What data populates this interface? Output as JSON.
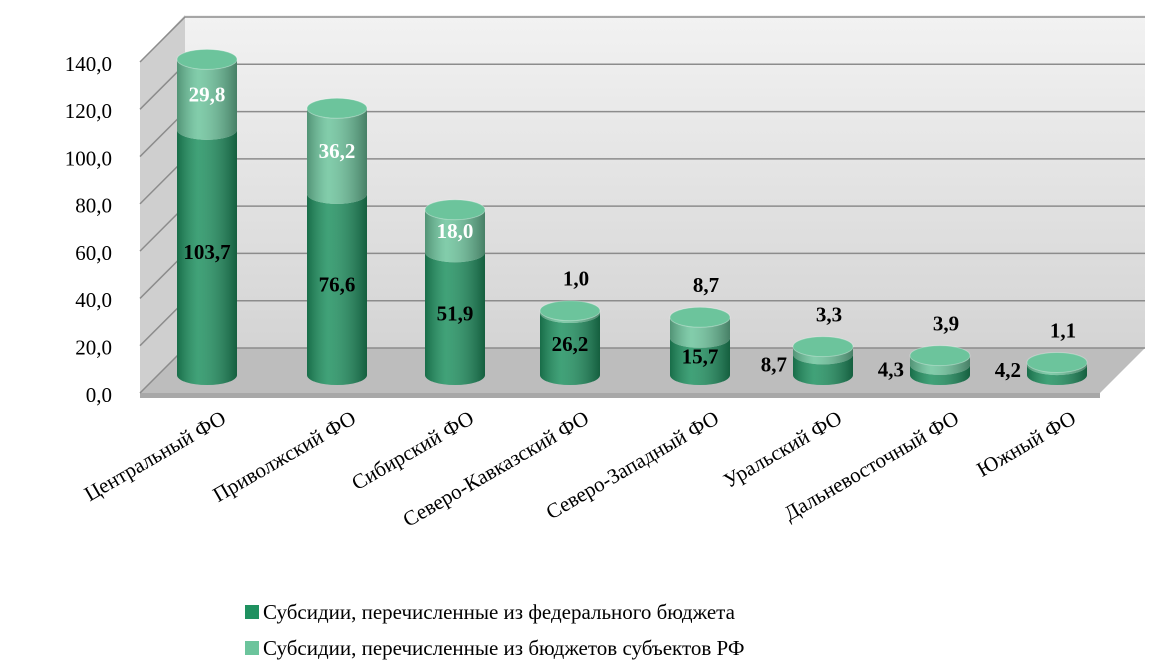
{
  "chart_data": {
    "type": "bar",
    "categories": [
      "Центральный ФО",
      "Приволжский ФО",
      "Сибирский ФО",
      "Северо-Кавказский ФО",
      "Северо-Западный ФО",
      "Уральский ФО",
      "Дальневосточный ФО",
      "Южный ФО"
    ],
    "series": [
      {
        "name": "Субсидии, перечисленные из федерального бюджета",
        "color": "#1f9160",
        "values": [
          103.7,
          76.6,
          51.9,
          26.2,
          15.7,
          8.7,
          4.3,
          4.2
        ],
        "value_labels": [
          "103,7",
          "76,6",
          "51,9",
          "26,2",
          "15,7",
          "8,7",
          "4,3",
          "4,2"
        ]
      },
      {
        "name": "Субсидии, перечисленные из бюджетов субъектов РФ",
        "color": "#6cc49c",
        "values": [
          29.8,
          36.2,
          18.0,
          1.0,
          8.7,
          3.3,
          3.9,
          1.1
        ],
        "value_labels": [
          "29,8",
          "36,2",
          "18,0",
          "1,0",
          "8,7",
          "3,3",
          "3,9",
          "1,1"
        ]
      }
    ],
    "stacked": true,
    "ylim": [
      0,
      140
    ],
    "yticks": [
      {
        "value": 0,
        "label": "0,0"
      },
      {
        "value": 20,
        "label": "20,0"
      },
      {
        "value": 40,
        "label": "40,0"
      },
      {
        "value": 60,
        "label": "60,0"
      },
      {
        "value": 80,
        "label": "80,0"
      },
      {
        "value": 100,
        "label": "100,0"
      },
      {
        "value": 120,
        "label": "120,0"
      },
      {
        "value": 140,
        "label": "140,0"
      }
    ],
    "grid": true
  }
}
